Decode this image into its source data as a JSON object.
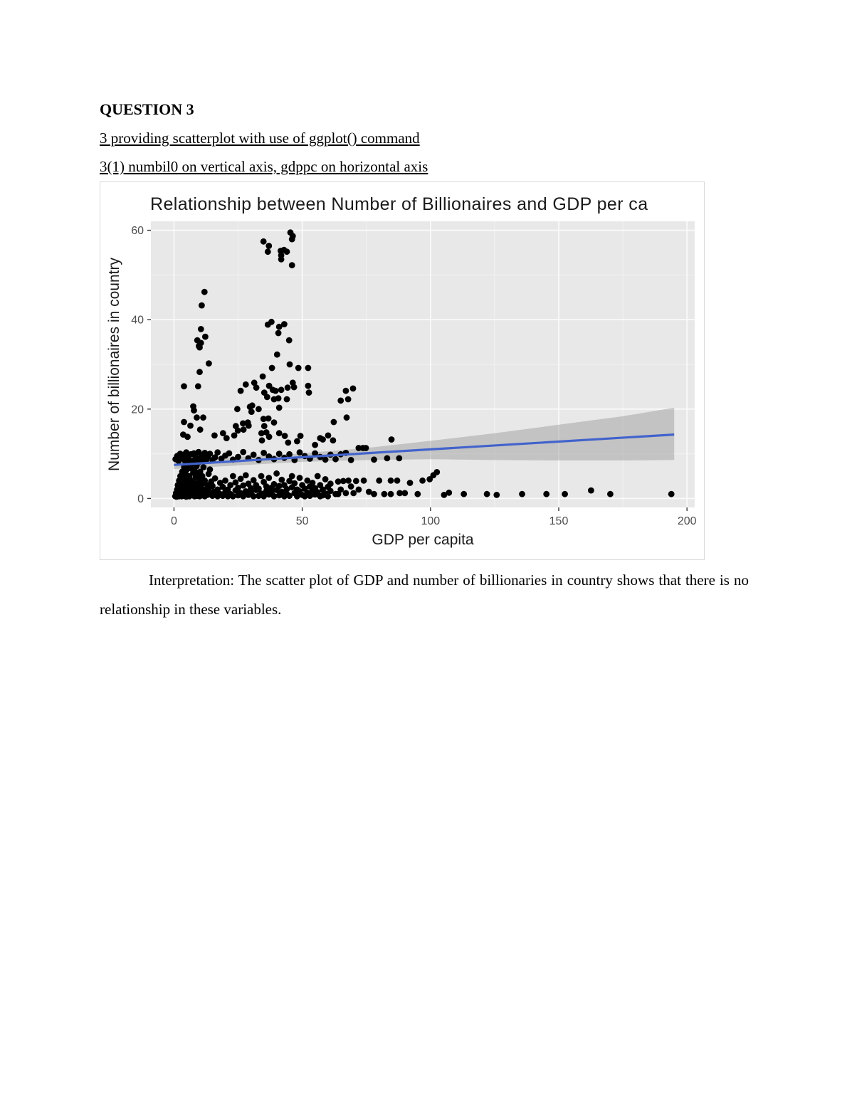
{
  "page": {
    "heading": "QUESTION 3",
    "subheading1": "3 providing scatterplot with use of ggplot() command",
    "subheading2": "3(1) numbil0 on vertical axis, gdppc on horizontal axis",
    "interpretation": "Interpretation: The scatter plot of GDP and number of billionaries in country shows that there is no relationship in these variables."
  },
  "chart_data": {
    "type": "scatter",
    "title": "Relationship between Number of Billionaires and GDP per ca",
    "xlabel": "GDP per capita",
    "ylabel": "Number of billionaires in country",
    "x_ticks": [
      0,
      50,
      100,
      150,
      200
    ],
    "y_ticks": [
      0,
      20,
      40,
      60
    ],
    "x_minor": [
      25,
      75,
      125,
      175
    ],
    "y_minor": [
      10,
      30,
      50
    ],
    "xlim": [
      -9,
      203
    ],
    "ylim": [
      -2,
      62
    ],
    "grid": true,
    "legend_position": "none",
    "panel_bg": "#e8e8e8",
    "grid_color": "#fbfbfb",
    "minor_grid_color": "#f2f2f2",
    "tick_color": "#4d4d4d",
    "axis_text_color": "#1a1a1a",
    "point_color": "#000000",
    "smooth_line_color": "#4263cc",
    "band_color": "#8f8f8f",
    "regression": {
      "x": [
        0,
        195
      ],
      "y": [
        7.5,
        14.3
      ]
    },
    "band": {
      "x": [
        0,
        25,
        50,
        75,
        100,
        125,
        150,
        175,
        195
      ],
      "upper": [
        8.4,
        9.3,
        10.1,
        11.3,
        12.9,
        14.6,
        16.5,
        18.4,
        20.3
      ],
      "lower": [
        6.6,
        7.4,
        8.2,
        8.6,
        8.8,
        8.6,
        8.5,
        8.5,
        8.6
      ]
    },
    "points": [
      [
        0.5,
        0.5
      ],
      [
        0.8,
        1.2
      ],
      [
        1,
        0.4
      ],
      [
        1.2,
        2
      ],
      [
        1.5,
        0.8
      ],
      [
        1.5,
        3
      ],
      [
        1.8,
        1.5
      ],
      [
        2,
        0.5
      ],
      [
        2,
        4
      ],
      [
        2.2,
        2.5
      ],
      [
        2.5,
        1
      ],
      [
        2.5,
        5
      ],
      [
        2.8,
        3.5
      ],
      [
        3,
        0.5
      ],
      [
        3,
        2
      ],
      [
        3.2,
        6
      ],
      [
        3.5,
        1.2
      ],
      [
        3.5,
        4.5
      ],
      [
        3.8,
        2.8
      ],
      [
        4,
        0.6
      ],
      [
        4,
        7
      ],
      [
        4.2,
        3.8
      ],
      [
        4.5,
        1.8
      ],
      [
        4.5,
        5.5
      ],
      [
        4.8,
        0.4
      ],
      [
        5,
        2.5
      ],
      [
        5,
        6.5
      ],
      [
        5.2,
        4.2
      ],
      [
        5.5,
        1
      ],
      [
        5.5,
        7.5
      ],
      [
        5.8,
        3
      ],
      [
        6,
        0.5
      ],
      [
        6,
        5
      ],
      [
        6.2,
        2
      ],
      [
        6.5,
        6.8
      ],
      [
        6.5,
        1.5
      ],
      [
        6.8,
        4
      ],
      [
        7,
        0.8
      ],
      [
        7,
        7.8
      ],
      [
        7.2,
        2.8
      ],
      [
        7.5,
        5.8
      ],
      [
        7.5,
        1.2
      ],
      [
        7.8,
        3.5
      ],
      [
        8,
        0.5
      ],
      [
        8,
        6.2
      ],
      [
        8.2,
        2.2
      ],
      [
        8.5,
        4.8
      ],
      [
        8.5,
        1
      ],
      [
        8.8,
        7.2
      ],
      [
        9,
        3
      ],
      [
        9,
        0.6
      ],
      [
        9.2,
        5.2
      ],
      [
        9.5,
        1.8
      ],
      [
        9.5,
        8
      ],
      [
        9.8,
        4
      ],
      [
        10,
        0.5
      ],
      [
        10,
        2.5
      ],
      [
        10.2,
        6
      ],
      [
        10.5,
        1.2
      ],
      [
        10.5,
        9
      ],
      [
        10.8,
        3.2
      ],
      [
        11,
        0.7
      ],
      [
        11,
        5
      ],
      [
        11.5,
        2
      ],
      [
        11.5,
        7
      ],
      [
        12,
        0.5
      ],
      [
        12,
        4
      ],
      [
        12.5,
        1.5
      ],
      [
        12.5,
        8.5
      ],
      [
        13,
        3
      ],
      [
        13,
        0.8
      ],
      [
        13.5,
        5.5
      ],
      [
        13.5,
        2.2
      ],
      [
        14,
        1
      ],
      [
        14,
        6.5
      ],
      [
        14.5,
        3.8
      ],
      [
        15,
        0.6
      ],
      [
        15,
        2.8
      ],
      [
        15.5,
        1.5
      ],
      [
        16,
        4.5
      ],
      [
        16,
        0.9
      ],
      [
        17,
        0.5
      ],
      [
        17,
        2
      ],
      [
        18,
        1
      ],
      [
        18,
        3.5
      ],
      [
        19,
        0.6
      ],
      [
        19,
        2.6
      ],
      [
        20,
        1.4
      ],
      [
        20,
        4
      ],
      [
        21,
        0.5
      ],
      [
        21,
        2
      ],
      [
        22,
        1
      ],
      [
        22,
        3
      ],
      [
        23,
        0.5
      ],
      [
        23,
        5
      ],
      [
        24,
        1.8
      ],
      [
        24,
        3.6
      ],
      [
        25,
        0.7
      ],
      [
        25,
        2.4
      ],
      [
        26,
        1.2
      ],
      [
        26,
        4.4
      ],
      [
        27,
        0.5
      ],
      [
        27,
        2.9
      ],
      [
        28,
        1.6
      ],
      [
        28,
        5.2
      ],
      [
        29,
        0.8
      ],
      [
        29,
        3.3
      ],
      [
        30,
        1.3
      ],
      [
        30,
        2.3
      ],
      [
        31,
        0.5
      ],
      [
        31,
        4.1
      ],
      [
        32,
        1.9
      ],
      [
        32,
        3
      ],
      [
        33,
        0.6
      ],
      [
        33,
        2.2
      ],
      [
        34,
        1.1
      ],
      [
        34,
        5
      ],
      [
        35,
        0.5
      ],
      [
        35,
        3.7
      ],
      [
        36,
        1.7
      ],
      [
        36,
        2.7
      ],
      [
        37,
        0.9
      ],
      [
        37,
        4.6
      ],
      [
        38,
        1.4
      ],
      [
        38,
        2.4
      ],
      [
        39,
        0.5
      ],
      [
        39,
        3.2
      ],
      [
        40,
        1.9
      ],
      [
        40,
        5.6
      ],
      [
        41,
        0.7
      ],
      [
        41,
        2.8
      ],
      [
        42,
        1.5
      ],
      [
        42,
        4.2
      ],
      [
        43,
        0.5
      ],
      [
        43,
        3
      ],
      [
        44,
        2.1
      ],
      [
        44,
        1
      ],
      [
        45,
        3.9
      ],
      [
        45,
        0.6
      ],
      [
        46,
        2.5
      ],
      [
        46,
        5
      ],
      [
        47,
        1.2
      ],
      [
        47,
        3.4
      ],
      [
        48,
        0.5
      ],
      [
        48,
        2
      ],
      [
        49,
        4.6
      ],
      [
        49,
        1.6
      ],
      [
        50,
        0.8
      ],
      [
        50,
        3
      ],
      [
        51,
        2.2
      ],
      [
        51,
        0.5
      ],
      [
        52,
        4
      ],
      [
        52,
        1.3
      ],
      [
        53,
        2.7
      ],
      [
        53,
        0.6
      ],
      [
        54,
        1.8
      ],
      [
        54,
        3.5
      ],
      [
        55,
        0.9
      ],
      [
        55,
        2.3
      ],
      [
        56,
        5
      ],
      [
        56,
        1.4
      ],
      [
        57,
        0.5
      ],
      [
        57,
        3
      ],
      [
        58,
        2
      ],
      [
        58,
        0.7
      ],
      [
        59,
        4.3
      ],
      [
        59,
        1.1
      ],
      [
        60,
        2.6
      ],
      [
        60,
        0.5
      ],
      [
        61,
        1.7
      ],
      [
        61,
        3.3
      ],
      [
        63,
        1
      ],
      [
        64,
        1
      ],
      [
        64,
        3.8
      ],
      [
        65,
        2
      ],
      [
        66,
        3.9
      ],
      [
        67,
        1.2
      ],
      [
        68,
        4
      ],
      [
        69,
        2.7
      ],
      [
        70,
        1.2
      ],
      [
        71,
        3.9
      ],
      [
        72,
        2
      ],
      [
        74,
        4
      ],
      [
        76,
        1.5
      ],
      [
        78,
        1
      ],
      [
        80,
        4
      ],
      [
        82,
        1
      ],
      [
        84.5,
        4
      ],
      [
        84.5,
        1
      ],
      [
        87,
        4
      ],
      [
        88,
        1.2
      ],
      [
        90,
        1.2
      ],
      [
        92,
        3.5
      ],
      [
        95,
        1
      ],
      [
        96.9,
        4
      ],
      [
        99.7,
        4.3
      ],
      [
        101.1,
        5.2
      ],
      [
        102.5,
        5.9
      ],
      [
        105.3,
        0.8
      ],
      [
        107.2,
        1.3
      ],
      [
        113,
        1
      ],
      [
        122,
        1
      ],
      [
        125.8,
        0.8
      ],
      [
        135.7,
        1
      ],
      [
        145.2,
        1
      ],
      [
        152.4,
        1
      ],
      [
        162.6,
        1.8
      ],
      [
        170.1,
        1
      ],
      [
        193.9,
        1
      ],
      [
        0.6,
        8.8
      ],
      [
        1.2,
        9.5
      ],
      [
        1.8,
        8.4
      ],
      [
        2.4,
        10
      ],
      [
        3,
        9
      ],
      [
        3.6,
        9.8
      ],
      [
        4.2,
        8.5
      ],
      [
        4.8,
        10.3
      ],
      [
        5.4,
        9.2
      ],
      [
        6,
        8.6
      ],
      [
        6.6,
        9.9
      ],
      [
        7.2,
        8.4
      ],
      [
        7.8,
        10.1
      ],
      [
        8.4,
        9.3
      ],
      [
        9,
        8.7
      ],
      [
        9.6,
        10.4
      ],
      [
        10.2,
        9.1
      ],
      [
        10.8,
        8.5
      ],
      [
        11.4,
        9.7
      ],
      [
        12,
        10.2
      ],
      [
        12.6,
        8.8
      ],
      [
        13.2,
        9.4
      ],
      [
        14,
        10
      ],
      [
        15,
        8.6
      ],
      [
        16,
        9.2
      ],
      [
        17,
        10.3
      ],
      [
        18.5,
        8.9
      ],
      [
        20,
        9.6
      ],
      [
        21.5,
        10.1
      ],
      [
        23,
        8.7
      ],
      [
        25,
        9.3
      ],
      [
        27,
        10.4
      ],
      [
        29,
        9
      ],
      [
        31,
        9.8
      ],
      [
        33,
        8.6
      ],
      [
        35,
        10.2
      ],
      [
        37,
        9.4
      ],
      [
        39,
        8.8
      ],
      [
        41,
        10
      ],
      [
        43,
        9.1
      ],
      [
        45,
        9.9
      ],
      [
        47,
        8.6
      ],
      [
        49,
        10.3
      ],
      [
        51,
        9.5
      ],
      [
        53,
        8.9
      ],
      [
        55,
        10.1
      ],
      [
        57,
        9.3
      ],
      [
        59,
        8.7
      ],
      [
        61,
        9.8
      ],
      [
        63,
        8.8
      ],
      [
        65,
        9.9
      ],
      [
        67,
        10.2
      ],
      [
        69,
        8.6
      ],
      [
        72,
        11.3
      ],
      [
        73.7,
        11.3
      ],
      [
        74.8,
        11.3
      ],
      [
        78,
        8.7
      ],
      [
        83.1,
        9
      ],
      [
        87.8,
        9
      ],
      [
        84.8,
        13.2
      ],
      [
        3.6,
        14.3
      ],
      [
        3.9,
        17.1
      ],
      [
        5.3,
        13.8
      ],
      [
        6.4,
        16.3
      ],
      [
        7.5,
        20.6
      ],
      [
        7.8,
        19.7
      ],
      [
        8.9,
        18.1
      ],
      [
        10.2,
        15.4
      ],
      [
        11.4,
        18.1
      ],
      [
        15.8,
        14.1
      ],
      [
        19.1,
        14.6
      ],
      [
        20.5,
        13.5
      ],
      [
        23.5,
        14.1
      ],
      [
        24.1,
        16.2
      ],
      [
        24.7,
        20
      ],
      [
        24.9,
        15.2
      ],
      [
        26.9,
        16.8
      ],
      [
        27.1,
        15.4
      ],
      [
        28.8,
        17
      ],
      [
        29.1,
        16.3
      ],
      [
        29.6,
        20.5
      ],
      [
        30.2,
        19.4
      ],
      [
        30.5,
        20.8
      ],
      [
        33,
        20
      ],
      [
        34.1,
        14.6
      ],
      [
        34.3,
        13
      ],
      [
        34.9,
        17.8
      ],
      [
        35.2,
        16.2
      ],
      [
        36,
        14.8
      ],
      [
        36.8,
        17.9
      ],
      [
        37.1,
        13.8
      ],
      [
        39,
        17
      ],
      [
        41,
        14.6
      ],
      [
        41,
        20.3
      ],
      [
        43.2,
        14
      ],
      [
        44.5,
        12.5
      ],
      [
        48,
        12.8
      ],
      [
        49.3,
        14
      ],
      [
        55,
        12
      ],
      [
        57,
        13.5
      ],
      [
        58,
        13.2
      ],
      [
        60.1,
        14.1
      ],
      [
        62,
        13
      ],
      [
        62.3,
        17.1
      ],
      [
        65,
        21.9
      ],
      [
        67.3,
        18.1
      ],
      [
        67.9,
        22.2
      ],
      [
        3.9,
        25.1
      ],
      [
        9.4,
        25.1
      ],
      [
        10,
        28.3
      ],
      [
        13.6,
        30.2
      ],
      [
        26,
        24.1
      ],
      [
        28,
        25.5
      ],
      [
        31.3,
        25.9
      ],
      [
        32.1,
        24.8
      ],
      [
        34.6,
        27.3
      ],
      [
        35.2,
        23.7
      ],
      [
        36.3,
        22.7
      ],
      [
        37.1,
        25.2
      ],
      [
        38.5,
        24.3
      ],
      [
        39,
        22.2
      ],
      [
        39.6,
        24.1
      ],
      [
        40.7,
        22.4
      ],
      [
        41.8,
        24.3
      ],
      [
        44,
        22.2
      ],
      [
        44.3,
        24.8
      ],
      [
        46.3,
        25.9
      ],
      [
        46.8,
        24.9
      ],
      [
        52.3,
        25.2
      ],
      [
        52.6,
        23.7
      ],
      [
        38.2,
        29.2
      ],
      [
        48.5,
        29.2
      ],
      [
        52.3,
        29.2
      ],
      [
        45.1,
        30
      ],
      [
        67,
        24.1
      ],
      [
        69.8,
        24.6
      ],
      [
        9.1,
        35.4
      ],
      [
        9.7,
        34.1
      ],
      [
        10,
        33.8
      ],
      [
        10.5,
        34.8
      ],
      [
        10.5,
        37.9
      ],
      [
        12.2,
        36.2
      ],
      [
        10.8,
        43.2
      ],
      [
        11.9,
        46.2
      ],
      [
        36.6,
        38.9
      ],
      [
        38,
        39.5
      ],
      [
        40.2,
        32.2
      ],
      [
        40.7,
        37
      ],
      [
        41,
        38.4
      ],
      [
        43,
        39
      ],
      [
        44.9,
        35.4
      ],
      [
        34.9,
        57.5
      ],
      [
        36.6,
        55.2
      ],
      [
        37,
        56.5
      ],
      [
        41.6,
        55.4
      ],
      [
        42.9,
        55.6
      ],
      [
        44,
        55.2
      ],
      [
        41.8,
        54.4
      ],
      [
        41.8,
        53.5
      ],
      [
        45.4,
        59.5
      ],
      [
        46.3,
        58.7
      ],
      [
        46,
        58
      ],
      [
        46,
        52.2
      ]
    ]
  }
}
